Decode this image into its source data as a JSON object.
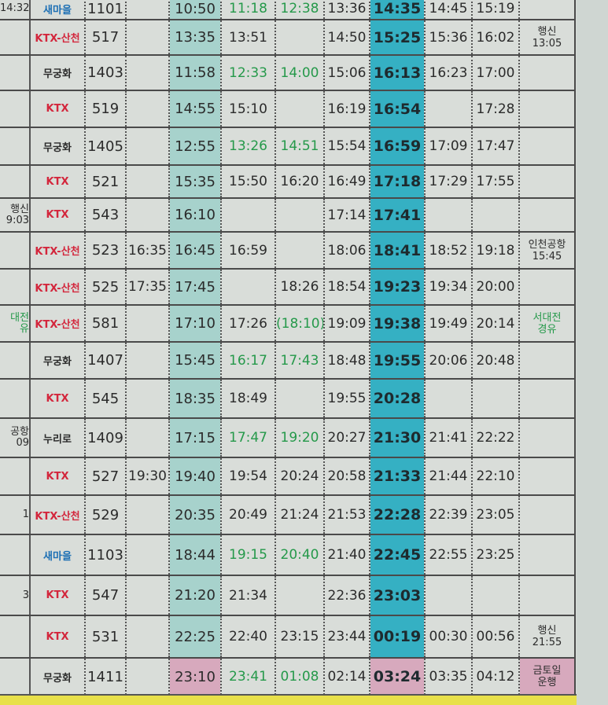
{
  "colors": {
    "ktx": "#d3263c",
    "green": "#25994a",
    "saemaeul": "#1c6fb4",
    "light_teal": "#a7d2cc",
    "dark_teal": "#35b0c3",
    "pink": "#d7a9bd"
  },
  "rows": [
    {
      "left": "14:32",
      "type": "새마을",
      "color": "blu",
      "no": "1101",
      "times": [
        "",
        "10:50",
        "11:18",
        "12:38",
        "13:36",
        "14:35",
        "14:45",
        "15:19"
      ],
      "green": [
        2,
        3
      ],
      "note": ""
    },
    {
      "left": "",
      "type": "KTX-산천",
      "color": "red",
      "no": "517",
      "times": [
        "",
        "13:35",
        "13:51",
        "",
        "14:50",
        "15:25",
        "15:36",
        "16:02"
      ],
      "green": [],
      "note": "행신\n13:05"
    },
    {
      "left": "",
      "type": "무궁화",
      "color": "blk",
      "no": "1403",
      "times": [
        "",
        "11:58",
        "12:33",
        "14:00",
        "15:06",
        "16:13",
        "16:23",
        "17:00"
      ],
      "green": [
        2,
        3
      ],
      "note": ""
    },
    {
      "left": "",
      "type": "KTX",
      "color": "red",
      "no": "519",
      "times": [
        "",
        "14:55",
        "15:10",
        "",
        "16:19",
        "16:54",
        "",
        "17:28"
      ],
      "green": [],
      "note": ""
    },
    {
      "left": "",
      "type": "무궁화",
      "color": "blk",
      "no": "1405",
      "times": [
        "",
        "12:55",
        "13:26",
        "14:51",
        "15:54",
        "16:59",
        "17:09",
        "17:47"
      ],
      "green": [
        2,
        3
      ],
      "note": ""
    },
    {
      "left": "",
      "type": "KTX",
      "color": "red",
      "no": "521",
      "times": [
        "",
        "15:35",
        "15:50",
        "16:20",
        "16:49",
        "17:18",
        "17:29",
        "17:55"
      ],
      "green": [],
      "note": ""
    },
    {
      "left": "행신\n9:03",
      "type": "KTX",
      "color": "red",
      "no": "543",
      "times": [
        "",
        "16:10",
        "",
        "",
        "17:14",
        "17:41",
        "",
        ""
      ],
      "green": [],
      "note": ""
    },
    {
      "left": "",
      "type": "KTX-산천",
      "color": "red",
      "no": "523",
      "times": [
        "16:35",
        "16:45",
        "16:59",
        "",
        "18:06",
        "18:41",
        "18:52",
        "19:18"
      ],
      "green": [],
      "note": "인천공항\n15:45"
    },
    {
      "left": "",
      "type": "KTX-산천",
      "color": "red",
      "no": "525",
      "times": [
        "17:35",
        "17:45",
        "",
        "18:26",
        "18:54",
        "19:23",
        "19:34",
        "20:00"
      ],
      "green": [],
      "note": ""
    },
    {
      "left": "대전\n유",
      "left_green": true,
      "type": "KTX-산천",
      "color": "red",
      "no": "581",
      "times": [
        "",
        "17:10",
        "17:26",
        "(18:10)",
        "19:09",
        "19:38",
        "19:49",
        "20:14"
      ],
      "green": [
        3
      ],
      "note": "서대전\n경유",
      "note_green": true
    },
    {
      "left": "",
      "type": "무궁화",
      "color": "blk",
      "no": "1407",
      "times": [
        "",
        "15:45",
        "16:17",
        "17:43",
        "18:48",
        "19:55",
        "20:06",
        "20:48"
      ],
      "green": [
        2,
        3
      ],
      "note": ""
    },
    {
      "left": "",
      "type": "KTX",
      "color": "red",
      "no": "545",
      "times": [
        "",
        "18:35",
        "18:49",
        "",
        "19:55",
        "20:28",
        "",
        ""
      ],
      "green": [],
      "note": ""
    },
    {
      "left": "공항\n09",
      "type": "누리로",
      "color": "blk",
      "no": "1409",
      "times": [
        "",
        "17:15",
        "17:47",
        "19:20",
        "20:27",
        "21:30",
        "21:41",
        "22:22"
      ],
      "green": [
        2,
        3
      ],
      "note": ""
    },
    {
      "left": "",
      "type": "KTX",
      "color": "red",
      "no": "527",
      "times": [
        "19:30",
        "19:40",
        "19:54",
        "20:24",
        "20:58",
        "21:33",
        "21:44",
        "22:10"
      ],
      "green": [],
      "note": ""
    },
    {
      "left": "1",
      "type": "KTX-산천",
      "color": "red",
      "no": "529",
      "times": [
        "",
        "20:35",
        "20:49",
        "21:24",
        "21:53",
        "22:28",
        "22:39",
        "23:05"
      ],
      "green": [],
      "note": ""
    },
    {
      "left": "",
      "type": "새마을",
      "color": "blu",
      "no": "1103",
      "times": [
        "",
        "18:44",
        "19:15",
        "20:40",
        "21:40",
        "22:45",
        "22:55",
        "23:25"
      ],
      "green": [
        2,
        3
      ],
      "note": ""
    },
    {
      "left": "3",
      "type": "KTX",
      "color": "red",
      "no": "547",
      "times": [
        "",
        "21:20",
        "21:34",
        "",
        "22:36",
        "23:03",
        "",
        ""
      ],
      "green": [],
      "note": ""
    },
    {
      "left": "",
      "type": "KTX",
      "color": "red",
      "no": "531",
      "times": [
        "",
        "22:25",
        "22:40",
        "23:15",
        "23:44",
        "00:19",
        "00:30",
        "00:56"
      ],
      "green": [],
      "note": "행신\n21:55"
    },
    {
      "left": "",
      "type": "무궁화",
      "color": "blk",
      "no": "1411",
      "times": [
        "",
        "23:10",
        "23:41",
        "01:08",
        "02:14",
        "03:24",
        "03:35",
        "04:12"
      ],
      "green": [
        2,
        3
      ],
      "note": "금토일\n운행",
      "pink": true
    }
  ]
}
